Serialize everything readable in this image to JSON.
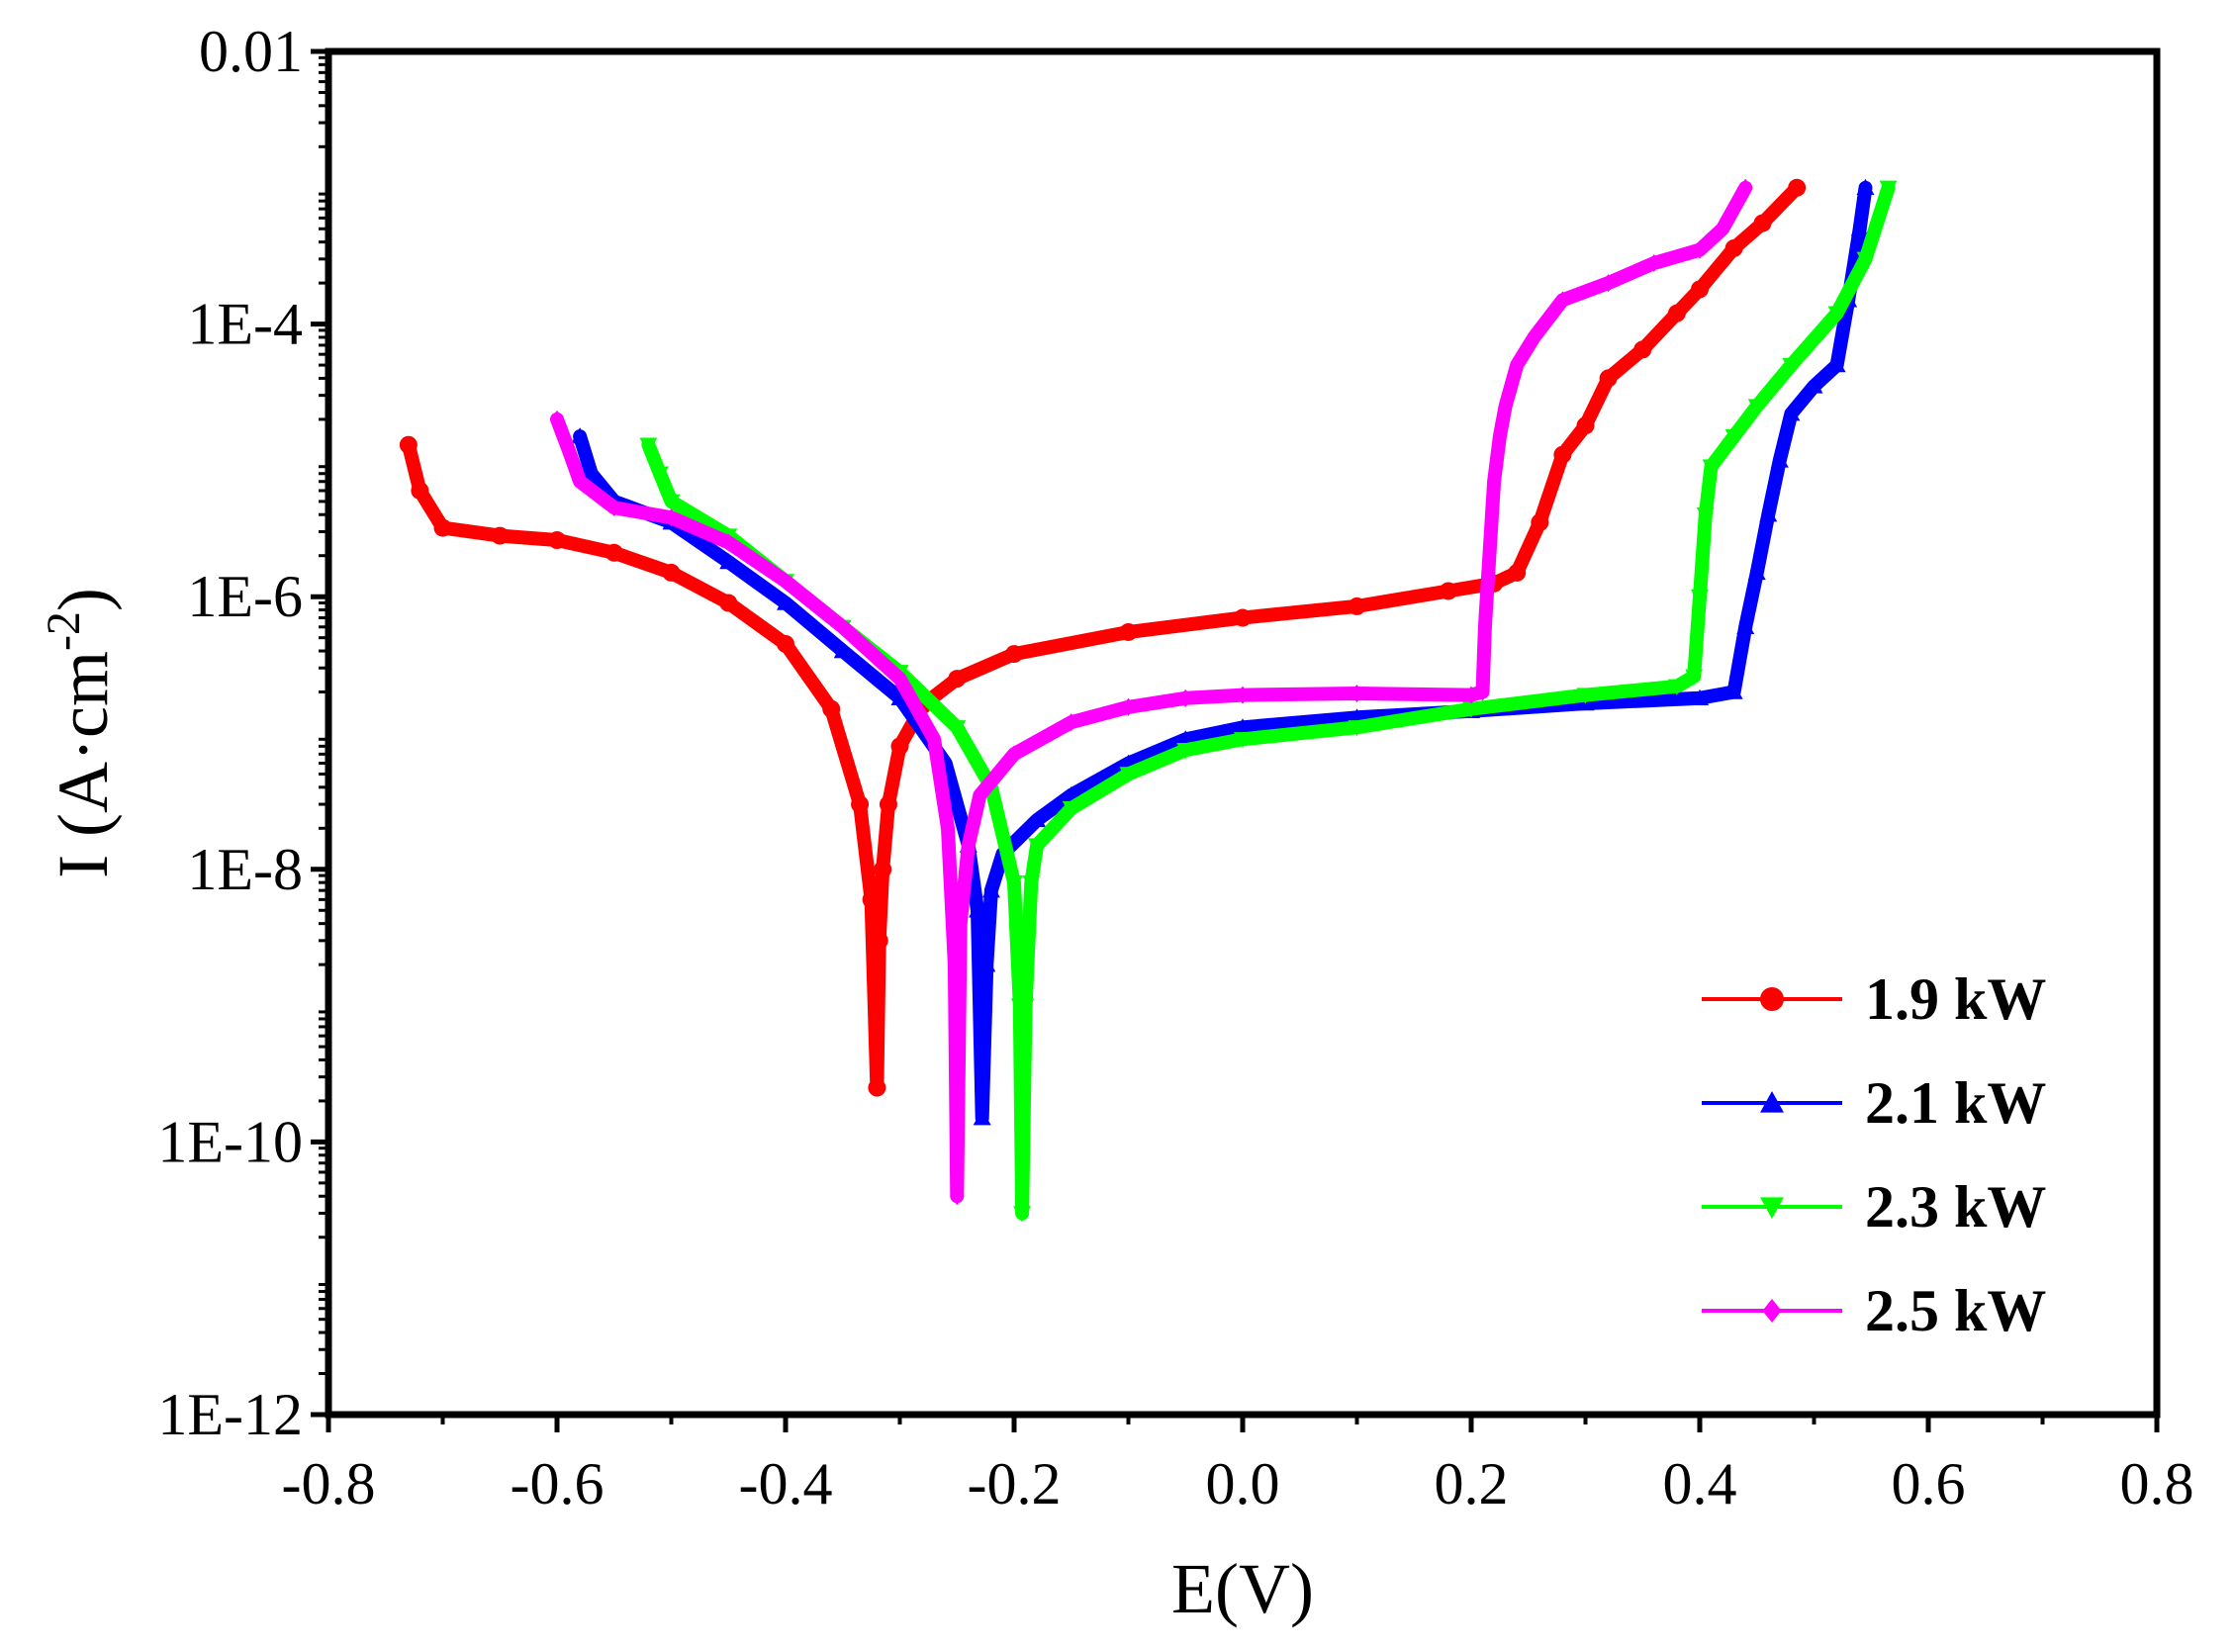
{
  "chart_data": {
    "type": "line",
    "xlabel": "E(V)",
    "ylabel": "I (A·cm-2)",
    "ylabel_parts": {
      "main": "I (A·cm",
      "sup": "-2",
      "close": ")"
    },
    "xlim": [
      -0.8,
      0.8
    ],
    "ylim_log10": [
      -12,
      -2
    ],
    "yscale": "log",
    "x_ticks": [
      "-0.8",
      "-0.6",
      "-0.4",
      "-0.2",
      "0.0",
      "0.2",
      "0.4",
      "0.6",
      "0.8"
    ],
    "y_ticks": [
      {
        "exp": -2,
        "label": "0.01"
      },
      {
        "exp": -4,
        "label": "1E-4"
      },
      {
        "exp": -6,
        "label": "1E-6"
      },
      {
        "exp": -8,
        "label": "1E-8"
      },
      {
        "exp": -10,
        "label": "1E-10"
      },
      {
        "exp": -12,
        "label": "1E-12"
      }
    ],
    "legend_position": "bottom-right",
    "grid": false,
    "series": [
      {
        "name": "1.9 kW",
        "color": "#ff0000",
        "marker": "circle",
        "points": [
          [
            -0.73,
            1.3e-05
          ],
          [
            -0.72,
            6e-06
          ],
          [
            -0.7,
            3.2e-06
          ],
          [
            -0.65,
            2.8e-06
          ],
          [
            -0.6,
            2.6e-06
          ],
          [
            -0.55,
            2.1e-06
          ],
          [
            -0.5,
            1.5e-06
          ],
          [
            -0.45,
            9e-07
          ],
          [
            -0.4,
            4.5e-07
          ],
          [
            -0.36,
            1.5e-07
          ],
          [
            -0.335,
            3e-08
          ],
          [
            -0.325,
            6e-09
          ],
          [
            -0.32,
            2.5e-10
          ],
          [
            -0.318,
            3e-09
          ],
          [
            -0.315,
            1e-08
          ],
          [
            -0.31,
            3e-08
          ],
          [
            -0.3,
            8e-08
          ],
          [
            -0.28,
            1.6e-07
          ],
          [
            -0.25,
            2.5e-07
          ],
          [
            -0.2,
            3.8e-07
          ],
          [
            -0.1,
            5.5e-07
          ],
          [
            0.0,
            7e-07
          ],
          [
            0.1,
            8.5e-07
          ],
          [
            0.18,
            1.1e-06
          ],
          [
            0.22,
            1.25e-06
          ],
          [
            0.24,
            1.5e-06
          ],
          [
            0.26,
            3.5e-06
          ],
          [
            0.28,
            1.1e-05
          ],
          [
            0.3,
            1.8e-05
          ],
          [
            0.32,
            4e-05
          ],
          [
            0.35,
            6.5e-05
          ],
          [
            0.38,
            0.00012
          ],
          [
            0.4,
            0.00018
          ],
          [
            0.43,
            0.00036
          ],
          [
            0.455,
            0.00055
          ],
          [
            0.485,
            0.001
          ]
        ]
      },
      {
        "name": "2.1 kW",
        "color": "#0000ff",
        "marker": "triangle-up",
        "points": [
          [
            -0.58,
            1.5e-05
          ],
          [
            -0.57,
            8e-06
          ],
          [
            -0.55,
            5e-06
          ],
          [
            -0.5,
            3.5e-06
          ],
          [
            -0.45,
            1.8e-06
          ],
          [
            -0.4,
            9e-07
          ],
          [
            -0.35,
            4e-07
          ],
          [
            -0.3,
            1.8e-07
          ],
          [
            -0.26,
            6e-08
          ],
          [
            -0.24,
            1.5e-08
          ],
          [
            -0.232,
            5e-09
          ],
          [
            -0.228,
            1.5e-10
          ],
          [
            -0.224,
            2e-09
          ],
          [
            -0.22,
            7e-09
          ],
          [
            -0.21,
            1.3e-08
          ],
          [
            -0.18,
            2.3e-08
          ],
          [
            -0.15,
            3.5e-08
          ],
          [
            -0.1,
            6e-08
          ],
          [
            -0.05,
            9e-08
          ],
          [
            0.0,
            1.1e-07
          ],
          [
            0.1,
            1.3e-07
          ],
          [
            0.2,
            1.45e-07
          ],
          [
            0.3,
            1.65e-07
          ],
          [
            0.4,
            1.8e-07
          ],
          [
            0.43,
            2e-07
          ],
          [
            0.44,
            6e-07
          ],
          [
            0.45,
            1.5e-06
          ],
          [
            0.46,
            4e-06
          ],
          [
            0.47,
            1e-05
          ],
          [
            0.48,
            2.2e-05
          ],
          [
            0.5,
            3.5e-05
          ],
          [
            0.52,
            5e-05
          ],
          [
            0.53,
            0.00015
          ],
          [
            0.54,
            0.0005
          ],
          [
            0.545,
            0.001
          ]
        ]
      },
      {
        "name": "2.3 kW",
        "color": "#00ff00",
        "marker": "triangle-down",
        "points": [
          [
            -0.52,
            1.3e-05
          ],
          [
            -0.51,
            8e-06
          ],
          [
            -0.5,
            5e-06
          ],
          [
            -0.45,
            2.8e-06
          ],
          [
            -0.4,
            1.3e-06
          ],
          [
            -0.35,
            6e-07
          ],
          [
            -0.3,
            2.8e-07
          ],
          [
            -0.25,
            1.1e-07
          ],
          [
            -0.22,
            4e-08
          ],
          [
            -0.2,
            8e-09
          ],
          [
            -0.195,
            1e-09
          ],
          [
            -0.193,
            3e-11
          ],
          [
            -0.19,
            1e-09
          ],
          [
            -0.185,
            8e-09
          ],
          [
            -0.18,
            1.5e-08
          ],
          [
            -0.15,
            2.8e-08
          ],
          [
            -0.1,
            5e-08
          ],
          [
            -0.05,
            7.5e-08
          ],
          [
            0.0,
            9e-08
          ],
          [
            0.1,
            1.1e-07
          ],
          [
            0.2,
            1.5e-07
          ],
          [
            0.3,
            1.9e-07
          ],
          [
            0.38,
            2.2e-07
          ],
          [
            0.395,
            2.6e-07
          ],
          [
            0.4,
            1e-06
          ],
          [
            0.405,
            4e-06
          ],
          [
            0.41,
            9e-06
          ],
          [
            0.43,
            1.5e-05
          ],
          [
            0.45,
            2.5e-05
          ],
          [
            0.48,
            5e-05
          ],
          [
            0.52,
            0.00012
          ],
          [
            0.545,
            0.0003
          ],
          [
            0.565,
            0.001
          ]
        ]
      },
      {
        "name": "2.5 kW",
        "color": "#ff00ff",
        "marker": "diamond",
        "points": [
          [
            -0.6,
            2e-05
          ],
          [
            -0.59,
            1.2e-05
          ],
          [
            -0.58,
            7e-06
          ],
          [
            -0.55,
            4.5e-06
          ],
          [
            -0.5,
            3.8e-06
          ],
          [
            -0.45,
            2.5e-06
          ],
          [
            -0.4,
            1.3e-06
          ],
          [
            -0.35,
            6e-07
          ],
          [
            -0.3,
            2.5e-07
          ],
          [
            -0.27,
            9e-08
          ],
          [
            -0.258,
            2e-08
          ],
          [
            -0.252,
            2e-09
          ],
          [
            -0.25,
            4e-11
          ],
          [
            -0.247,
            4e-09
          ],
          [
            -0.24,
            1.5e-08
          ],
          [
            -0.23,
            3.5e-08
          ],
          [
            -0.2,
            7e-08
          ],
          [
            -0.15,
            1.2e-07
          ],
          [
            -0.1,
            1.55e-07
          ],
          [
            -0.05,
            1.8e-07
          ],
          [
            0.0,
            1.9e-07
          ],
          [
            0.1,
            1.95e-07
          ],
          [
            0.2,
            1.9e-07
          ],
          [
            0.21,
            2e-07
          ],
          [
            0.212,
            6e-07
          ],
          [
            0.215,
            1.5e-06
          ],
          [
            0.22,
            7e-06
          ],
          [
            0.225,
            1.5e-05
          ],
          [
            0.23,
            2.5e-05
          ],
          [
            0.24,
            5e-05
          ],
          [
            0.255,
            8e-05
          ],
          [
            0.28,
            0.00015
          ],
          [
            0.32,
            0.0002
          ],
          [
            0.36,
            0.00028
          ],
          [
            0.4,
            0.00035
          ],
          [
            0.42,
            0.0005
          ],
          [
            0.44,
            0.001
          ]
        ]
      }
    ]
  }
}
